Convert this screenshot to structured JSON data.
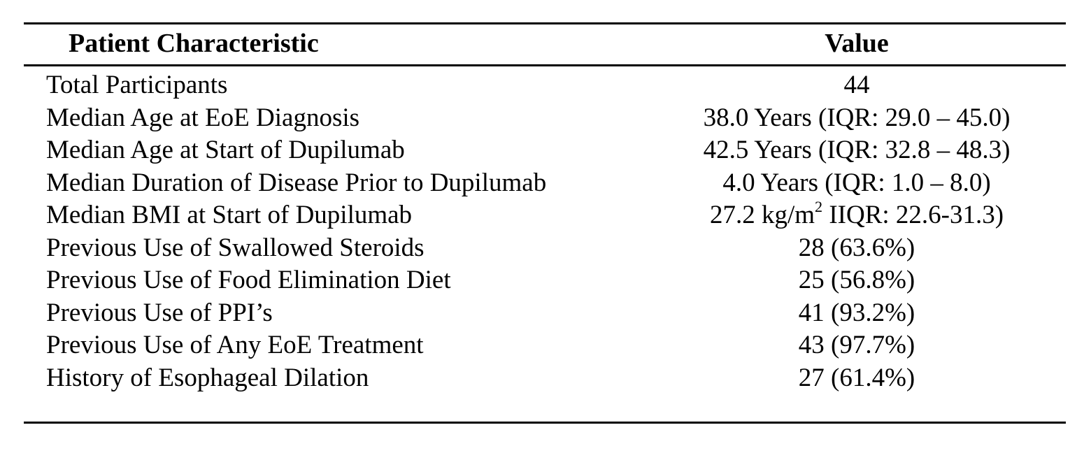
{
  "table": {
    "headers": {
      "characteristic": "Patient Characteristic",
      "value": "Value"
    },
    "rows": [
      {
        "label": "Total Participants",
        "value": "44"
      },
      {
        "label": "Median Age at EoE Diagnosis",
        "value": "38.0 Years (IQR: 29.0 – 45.0)"
      },
      {
        "label": "Median Age at Start of Dupilumab",
        "value": "42.5 Years (IQR: 32.8 – 48.3)"
      },
      {
        "label": "Median Duration of Disease Prior to Dupilumab",
        "value": "4.0 Years (IQR: 1.0 – 8.0)"
      },
      {
        "label": "Median BMI at Start of Dupilumab",
        "value_prefix": "27.2 kg/m",
        "value_sup": "2",
        "value_suffix": " IIQR: 22.6-31.3)"
      },
      {
        "label": "Previous Use of Swallowed Steroids",
        "value": "28 (63.6%)"
      },
      {
        "label": "Previous Use of Food Elimination Diet",
        "value": "25 (56.8%)"
      },
      {
        "label": "Previous Use of PPI’s",
        "value": "41 (93.2%)"
      },
      {
        "label": "Previous Use of Any EoE Treatment",
        "value": "43 (97.7%)"
      },
      {
        "label": "History of Esophageal Dilation",
        "value": "27 (61.4%)"
      }
    ]
  }
}
